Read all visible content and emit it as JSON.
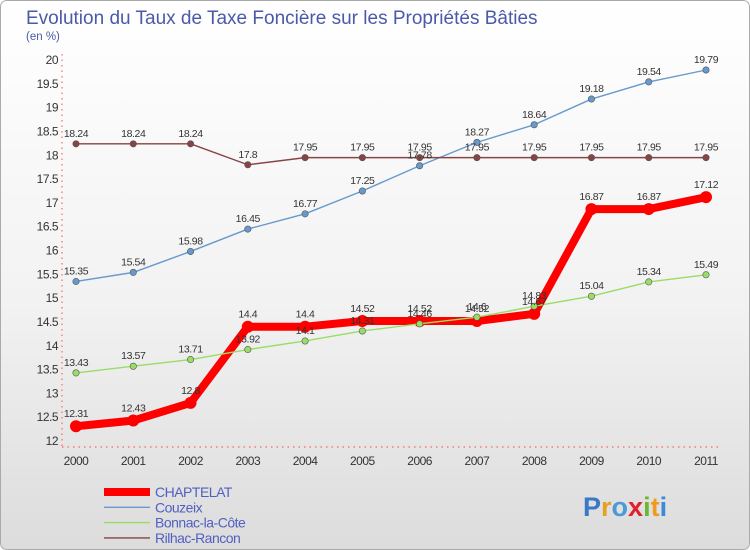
{
  "chart_data": {
    "type": "line",
    "title": "Evolution du Taux de Taxe Foncière sur les Propriétés Bâties",
    "ylabel": "(en %)",
    "xlabel": "",
    "ylim": [
      12,
      20
    ],
    "yticks": [
      "12",
      "12.5",
      "13",
      "13.5",
      "14",
      "14.5",
      "15",
      "15.5",
      "16",
      "16.5",
      "17",
      "17.5",
      "18",
      "18.5",
      "19",
      "19.5",
      "20"
    ],
    "categories": [
      "2000",
      "2001",
      "2002",
      "2003",
      "2004",
      "2005",
      "2006",
      "2007",
      "2008",
      "2009",
      "2010",
      "2011"
    ],
    "series": [
      {
        "name": "CHAPTELAT",
        "color": "#ff0000",
        "values": [
          12.31,
          12.43,
          12.8,
          14.4,
          14.4,
          14.52,
          14.52,
          14.52,
          14.67,
          16.87,
          16.87,
          17.12
        ],
        "labels": [
          "12.31",
          "12.43",
          "12.8",
          "14.4",
          "14.4",
          "14.52",
          "14.52",
          "14.52",
          "14.67",
          "16.87",
          "16.87",
          "17.12"
        ]
      },
      {
        "name": "Couzeix",
        "color": "#6699cc",
        "values": [
          15.35,
          15.54,
          15.98,
          16.45,
          16.77,
          17.25,
          17.78,
          18.27,
          18.64,
          19.18,
          19.54,
          19.79
        ],
        "labels": [
          "15.35",
          "15.54",
          "15.98",
          "16.45",
          "16.77",
          "17.25",
          "17.78",
          "18.27",
          "18.64",
          "19.18",
          "19.54",
          "19.79"
        ]
      },
      {
        "name": "Bonnac-la-Côte",
        "color": "#99dd66",
        "values": [
          13.43,
          13.57,
          13.71,
          13.92,
          14.1,
          14.31,
          14.46,
          14.6,
          14.83,
          15.04,
          15.34,
          15.49
        ],
        "labels": [
          "13.43",
          "13.57",
          "13.71",
          "13.92",
          "14.1",
          "14.31",
          "14.46",
          "14.6",
          "14.83",
          "15.04",
          "15.34",
          "15.49"
        ]
      },
      {
        "name": "Rilhac-Rancon",
        "color": "#884444",
        "values": [
          18.24,
          18.24,
          18.24,
          17.8,
          17.95,
          17.95,
          17.95,
          17.95,
          17.95,
          17.95,
          17.95,
          17.95
        ],
        "labels": [
          "18.24",
          "18.24",
          "18.24",
          "17.8",
          "17.95",
          "17.95",
          "17.95",
          "17.95",
          "17.95",
          "17.95",
          "17.95",
          "17.95"
        ]
      }
    ],
    "legend_position": "bottom-left"
  },
  "watermark": {
    "logo_text": "Proxiti"
  }
}
